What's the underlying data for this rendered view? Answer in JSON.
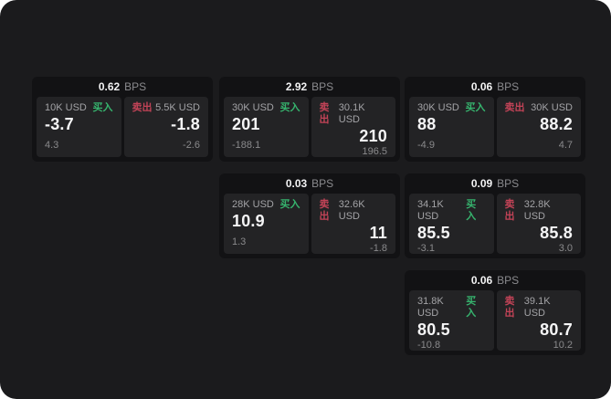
{
  "colors": {
    "buy_green": "#36b46e",
    "sell_red": "#c24357",
    "page_bg": "#1b1b1d",
    "card_bg": "#121214",
    "panel_bg": "#232325"
  },
  "cards": [
    {
      "bps_value": "0.62",
      "bps_unit": "BPS",
      "buy": {
        "amount": "10K USD",
        "side_label": "买入",
        "price": "-3.7",
        "delta": "4.3"
      },
      "sell": {
        "side_label": "卖出",
        "amount": "5.5K USD",
        "price": "-1.8",
        "delta": "-2.6"
      }
    },
    {
      "bps_value": "2.92",
      "bps_unit": "BPS",
      "buy": {
        "amount": "30K USD",
        "side_label": "买入",
        "price": "201",
        "delta": "-188.1"
      },
      "sell": {
        "side_label": "卖出",
        "amount": "30.1K USD",
        "price": "210",
        "delta": "196.5"
      }
    },
    {
      "bps_value": "0.06",
      "bps_unit": "BPS",
      "buy": {
        "amount": "30K USD",
        "side_label": "买入",
        "price": "88",
        "delta": "-4.9"
      },
      "sell": {
        "side_label": "卖出",
        "amount": "30K USD",
        "price": "88.2",
        "delta": "4.7"
      }
    },
    {
      "bps_value": "0.03",
      "bps_unit": "BPS",
      "buy": {
        "amount": "28K USD",
        "side_label": "买入",
        "price": "10.9",
        "delta": "1.3"
      },
      "sell": {
        "side_label": "卖出",
        "amount": "32.6K USD",
        "price": "11",
        "delta": "-1.8"
      }
    },
    {
      "bps_value": "0.09",
      "bps_unit": "BPS",
      "buy": {
        "amount": "34.1K USD",
        "side_label": "买入",
        "price": "85.5",
        "delta": "-3.1"
      },
      "sell": {
        "side_label": "卖出",
        "amount": "32.8K USD",
        "price": "85.8",
        "delta": "3.0"
      }
    },
    {
      "bps_value": "0.06",
      "bps_unit": "BPS",
      "buy": {
        "amount": "31.8K USD",
        "side_label": "买入",
        "price": "80.5",
        "delta": "-10.8"
      },
      "sell": {
        "side_label": "卖出",
        "amount": "39.1K USD",
        "price": "80.7",
        "delta": "10.2"
      }
    }
  ]
}
